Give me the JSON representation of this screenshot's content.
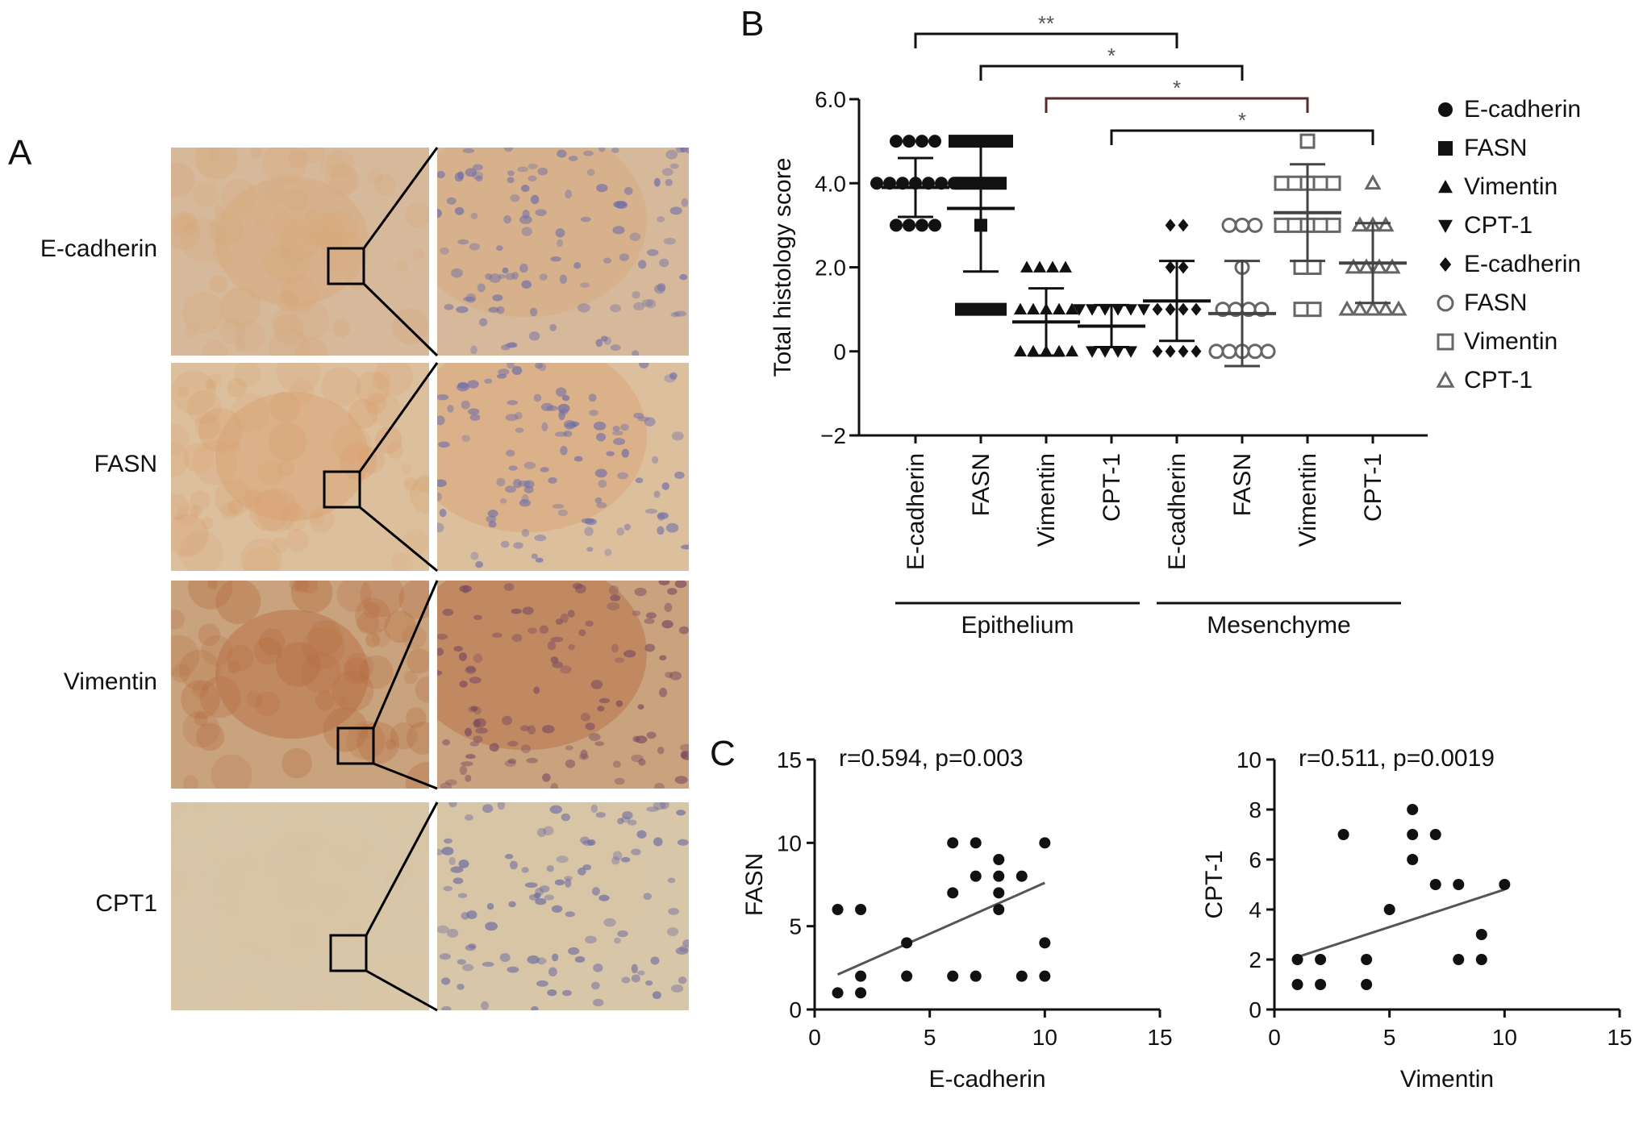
{
  "figure": {
    "panel_labels": [
      "A",
      "B",
      "C"
    ]
  },
  "panel_a": {
    "rows": [
      {
        "label": "E-cadherin",
        "tone": "#d6b89a",
        "detail": "#d8a87a",
        "nuclei": "#6f6ea8"
      },
      {
        "label": "FASN",
        "tone": "#dcc09e",
        "detail": "#d9a070",
        "nuclei": "#6f6ea8"
      },
      {
        "label": "Vimentin",
        "tone": "#c9a37e",
        "detail": "#b56a3e",
        "nuclei": "#7a4a60"
      },
      {
        "label": "CPT1",
        "tone": "#d8c6a8",
        "detail": "#d8c4a4",
        "nuclei": "#6a6aa0"
      }
    ]
  },
  "chart_data": [
    {
      "type": "scatter",
      "ylabel": "Total histology score",
      "ylim": [
        -2,
        6
      ],
      "yticks": [
        "6.0",
        "4.0",
        "2.0",
        "0",
        "−2"
      ],
      "ytick_values": [
        6,
        4,
        2,
        0,
        -2
      ],
      "categories": [
        "E-cadherin",
        "FASN",
        "Vimentin",
        "CPT-1",
        "E-cadherin",
        "FASN",
        "Vimentin",
        "CPT-1"
      ],
      "groups": [
        {
          "label": "Epithelium",
          "from": 0,
          "to": 3
        },
        {
          "label": "Mesenchyme",
          "from": 4,
          "to": 7
        }
      ],
      "series": [
        {
          "name": "E-cadherin",
          "marker": "circle",
          "filled": true,
          "x": 0,
          "mean": 3.9,
          "sd": 0.7,
          "points": [
            5,
            5,
            5,
            5,
            4,
            4,
            4,
            4,
            4,
            4,
            4,
            3,
            3,
            3,
            3
          ]
        },
        {
          "name": "FASN",
          "marker": "square",
          "filled": true,
          "x": 1,
          "mean": 3.4,
          "sd": 1.5,
          "points": [
            5,
            5,
            5,
            5,
            5,
            4,
            4,
            4,
            4,
            3,
            1,
            1,
            1,
            1
          ]
        },
        {
          "name": "Vimentin",
          "marker": "triangle-up",
          "filled": true,
          "x": 2,
          "mean": 0.7,
          "sd": 0.8,
          "points": [
            2,
            2,
            2,
            2,
            1,
            1,
            1,
            1,
            1,
            0,
            0,
            0,
            0,
            0
          ]
        },
        {
          "name": "CPT-1",
          "marker": "triangle-down",
          "filled": true,
          "x": 3,
          "mean": 0.6,
          "sd": 0.5,
          "points": [
            1,
            1,
            1,
            1,
            1,
            1,
            0,
            0,
            0,
            0
          ]
        },
        {
          "name": "E-cadherin",
          "marker": "diamond",
          "filled": true,
          "x": 4,
          "mean": 1.2,
          "sd": 0.95,
          "points": [
            3,
            3,
            2,
            2,
            1,
            1,
            1,
            1,
            0,
            0,
            0,
            0
          ]
        },
        {
          "name": "FASN",
          "marker": "circle",
          "filled": false,
          "x": 5,
          "mean": 0.9,
          "sd": 1.25,
          "points": [
            3,
            3,
            3,
            2,
            1,
            1,
            1,
            1,
            0,
            0,
            0,
            0,
            0
          ]
        },
        {
          "name": "Vimentin",
          "marker": "square",
          "filled": false,
          "x": 6,
          "mean": 3.3,
          "sd": 1.15,
          "points": [
            5,
            4,
            4,
            4,
            4,
            4,
            3,
            3,
            3,
            3,
            3,
            2,
            2,
            1,
            1
          ]
        },
        {
          "name": "CPT-1",
          "marker": "triangle-up",
          "filled": false,
          "x": 7,
          "mean": 2.1,
          "sd": 0.95,
          "points": [
            4,
            3,
            3,
            3,
            2,
            2,
            2,
            2,
            1,
            1,
            1,
            1,
            1
          ]
        }
      ],
      "significance": [
        {
          "from": 0,
          "to": 4,
          "label": "**"
        },
        {
          "from": 1,
          "to": 5,
          "label": "*"
        },
        {
          "from": 2,
          "to": 6,
          "label": "*"
        },
        {
          "from": 3,
          "to": 7,
          "label": "*"
        }
      ],
      "legend": [
        {
          "name": "E-cadherin",
          "marker": "circle",
          "filled": true
        },
        {
          "name": "FASN",
          "marker": "square",
          "filled": true
        },
        {
          "name": "Vimentin",
          "marker": "triangle-up",
          "filled": true
        },
        {
          "name": "CPT-1",
          "marker": "triangle-down",
          "filled": true
        },
        {
          "name": "E-cadherin",
          "marker": "diamond",
          "filled": true
        },
        {
          "name": "FASN",
          "marker": "circle",
          "filled": false
        },
        {
          "name": "Vimentin",
          "marker": "square",
          "filled": false
        },
        {
          "name": "CPT-1",
          "marker": "triangle-up",
          "filled": false
        }
      ],
      "legend_placement": "right"
    },
    {
      "type": "scatter",
      "annotation": "r=0.594, p=0.003",
      "xlabel": "E-cadherin",
      "ylabel": "FASN",
      "xlim": [
        0,
        15
      ],
      "ylim": [
        0,
        15
      ],
      "xticks": [
        0,
        5,
        10,
        15
      ],
      "yticks": [
        0,
        5,
        10,
        15
      ],
      "x": [
        1,
        1,
        2,
        2,
        2,
        4,
        4,
        6,
        6,
        6,
        7,
        7,
        7,
        8,
        8,
        8,
        8,
        9,
        9,
        10,
        10,
        10
      ],
      "y": [
        6,
        1,
        6,
        2,
        1,
        4,
        2,
        10,
        7,
        2,
        10,
        8,
        2,
        9,
        8,
        7,
        6,
        8,
        2,
        10,
        4,
        2
      ],
      "fit": {
        "x": [
          1,
          10
        ],
        "y": [
          2.1,
          7.6
        ]
      }
    },
    {
      "type": "scatter",
      "annotation": "r=0.511, p=0.0019",
      "xlabel": "Vimentin",
      "ylabel": "CPT-1",
      "xlim": [
        0,
        15
      ],
      "ylim": [
        0,
        10
      ],
      "xticks": [
        0,
        5,
        10,
        15
      ],
      "yticks": [
        0,
        2,
        4,
        6,
        8,
        10
      ],
      "x": [
        1,
        1,
        2,
        2,
        3,
        4,
        4,
        5,
        6,
        6,
        6,
        7,
        7,
        8,
        8,
        9,
        9,
        10
      ],
      "y": [
        2,
        1,
        2,
        1,
        7,
        2,
        1,
        4,
        8,
        7,
        6,
        7,
        5,
        5,
        2,
        3,
        2,
        5
      ],
      "fit": {
        "x": [
          1,
          10
        ],
        "y": [
          2.1,
          4.8
        ]
      }
    }
  ]
}
